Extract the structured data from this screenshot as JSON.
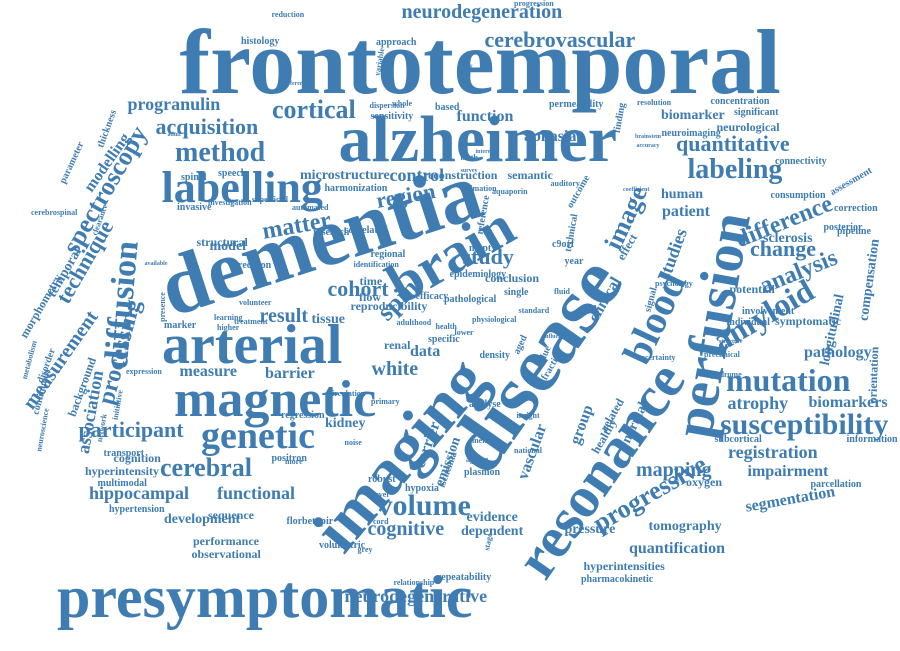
{
  "color": "#3e7cb1",
  "words": [
    "frontotemporal",
    "dementia",
    "disease",
    "imaging",
    "alzheimer",
    "presymptomatic",
    "resonance",
    "arterial",
    "brain",
    "magnetic",
    "perfusion",
    "labelling",
    "blood",
    "genetic",
    "amyloid",
    "mutation",
    "susceptibility",
    "labeling",
    "method",
    "cortical",
    "neurodegeneration",
    "cerebrovascular",
    "acquisition",
    "quantitative",
    "diffusion",
    "spectroscopy",
    "cerebral",
    "volume",
    "cognitive",
    "progressive",
    "spin",
    "matter",
    "analysis",
    "participant",
    "mapping",
    "image",
    "study",
    "neurodegenerative",
    "change",
    "difference",
    "hippocampal",
    "functional",
    "development",
    "quantification",
    "measurement",
    "processing",
    "technique",
    "progranulin",
    "atrophy",
    "biomarkers",
    "registration",
    "impairment",
    "tomography",
    "segmentation",
    "region",
    "control",
    "cohort",
    "white",
    "data",
    "measure",
    "barrier",
    "result",
    "association",
    "pathology",
    "aphasia",
    "function",
    "biomarker",
    "patient",
    "studies",
    "clinical",
    "human",
    "carrier",
    "emission",
    "vascular",
    "group",
    "model",
    "tissue",
    "kidney",
    "time",
    "flow",
    "renal",
    "cognition",
    "sequence",
    "performance",
    "evidence",
    "dependent",
    "hyperintensities",
    "pharmacokinetic",
    "hypertension",
    "multimodal",
    "hyperintensity",
    "observational",
    "volumetric",
    "florbetapir",
    "repeatability",
    "relationship",
    "hypoxia",
    "ischemia",
    "plasmon",
    "memory",
    "national",
    "ageing",
    "insight",
    "analyse",
    "related",
    "normal",
    "healthy",
    "oxygen",
    "subcortical",
    "information",
    "parcellation",
    "orientation",
    "compensation",
    "longitudinal",
    "symptomatic",
    "individual",
    "involvement",
    "potential",
    "sclerosis",
    "posterior",
    "pipeline",
    "correction",
    "assessment",
    "consumption",
    "connectivity",
    "neurological",
    "significant",
    "concentration",
    "resolution",
    "neuroimaging",
    "permeability",
    "sensitivity",
    "dispersion",
    "approach",
    "histology",
    "reduction",
    "progression",
    "microstructure",
    "harmonization",
    "reconstruction",
    "semantic",
    "speech",
    "spinal",
    "invasive",
    "structural",
    "precision",
    "regression",
    "positron",
    "transport",
    "network",
    "initiative",
    "background",
    "continuous",
    "disorder",
    "temporal",
    "modelling",
    "thickness",
    "parameter",
    "cerebrospinal",
    "morphometry",
    "metabolism",
    "neuroscience",
    "reproducibility",
    "epidemiology",
    "conclusion",
    "mapt",
    "c9orf",
    "year",
    "effect",
    "signal",
    "single",
    "density",
    "fraction",
    "aged",
    "value",
    "robust",
    "level",
    "noise",
    "primary",
    "circulation",
    "treatment",
    "higher",
    "learning",
    "marker",
    "presence",
    "volunteer",
    "available",
    "research",
    "correlated",
    "regional",
    "identification",
    "whole",
    "based",
    "birth",
    "survey",
    "estimation",
    "aquaporin",
    "auditory",
    "interest",
    "finding",
    "outcome",
    "technical",
    "reference",
    "pathological",
    "efficacy",
    "specific",
    "health",
    "lower",
    "more",
    "fluid",
    "cord",
    "grey",
    "expression",
    "stage",
    "pressure",
    "standard",
    "physiological",
    "adulthood",
    "superficial",
    "different",
    "variable",
    "animal",
    "adult",
    "clearance",
    "automated",
    "investigation",
    "psychology",
    "preclinical",
    "uncertainty",
    "syndrome",
    "structure",
    "coefficient",
    "brainstem",
    "accuracy",
    "influence",
    "baseline",
    "saturation",
    "integrity",
    "chronic"
  ]
}
